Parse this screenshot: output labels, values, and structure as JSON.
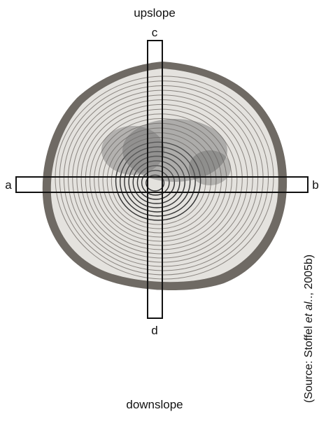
{
  "labels": {
    "top": "upslope",
    "bottom": "downslope",
    "left": "a",
    "right": "b",
    "upper": "c",
    "lower": "d"
  },
  "source": {
    "prefix": "(Source: Stoffel ",
    "italic": "et al.",
    "suffix": "., 2005b)"
  }
}
